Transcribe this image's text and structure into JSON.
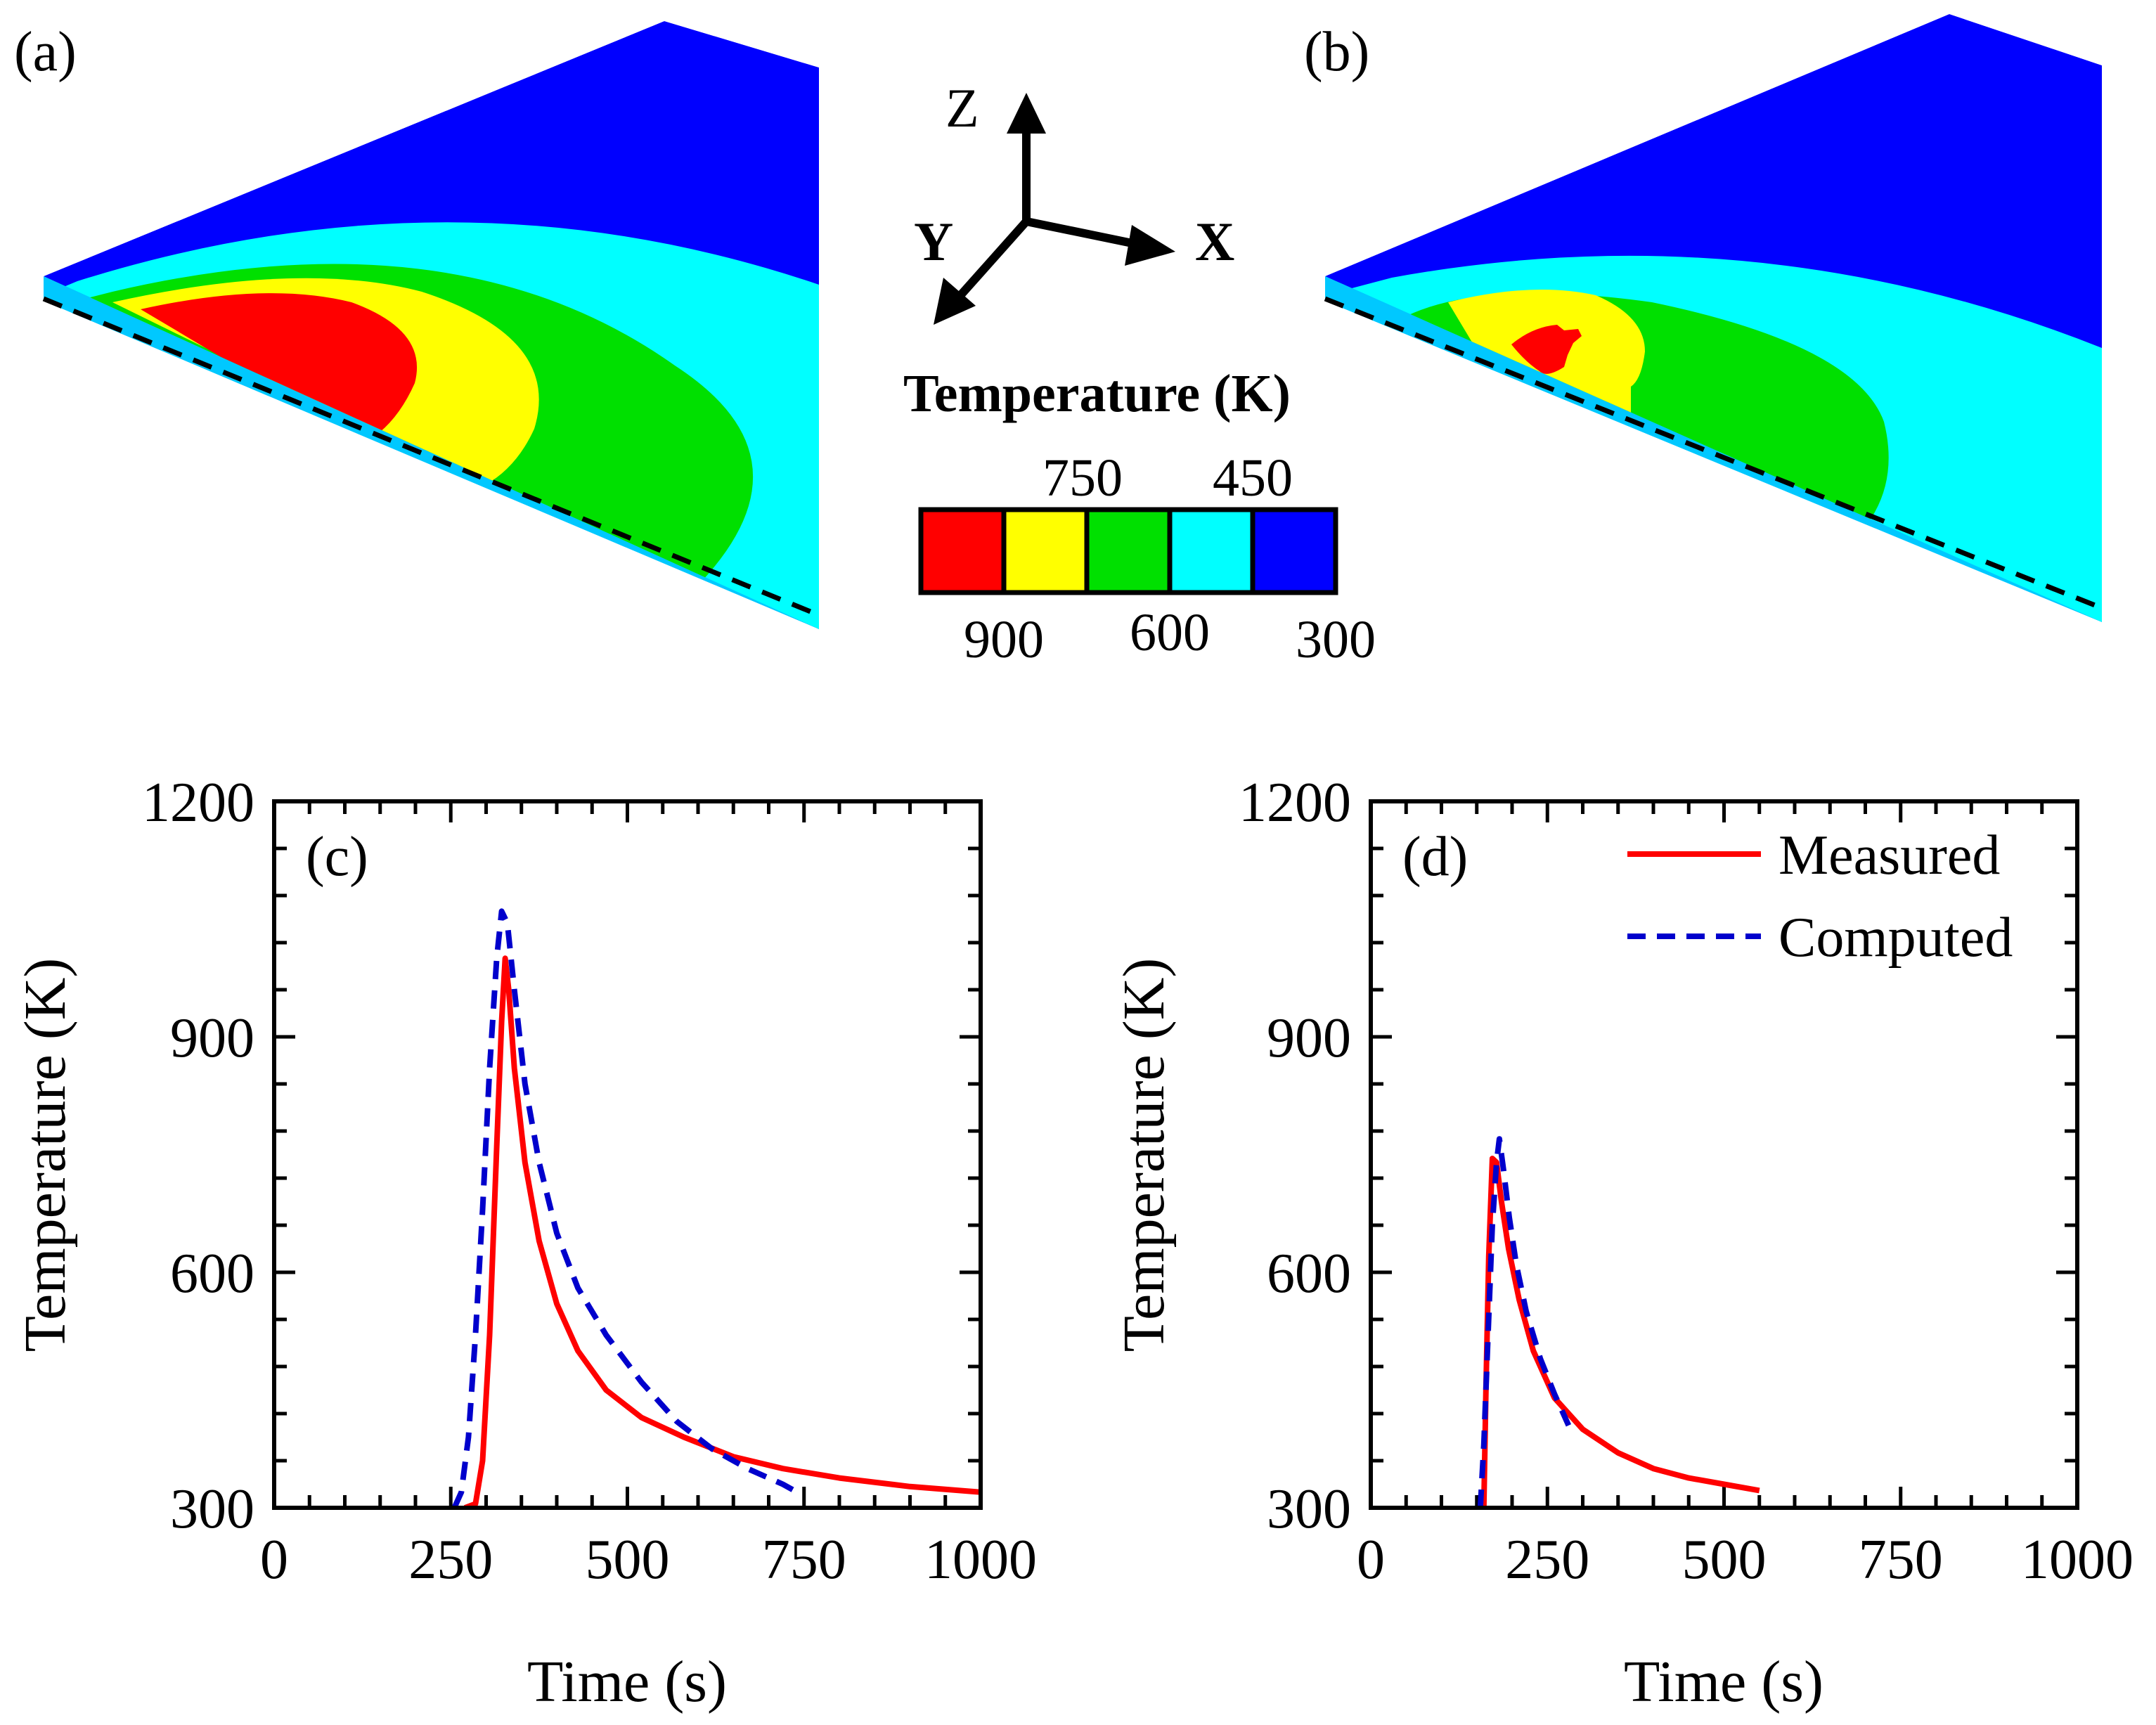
{
  "panel_labels": {
    "a": "(a)",
    "b": "(b)",
    "c": "(c)",
    "d": "(d)"
  },
  "axes_triad": {
    "z": "Z",
    "y": "Y",
    "x": "X"
  },
  "colorbar": {
    "title": "Temperature (K)",
    "top_labels": [
      "750",
      "450"
    ],
    "bottom_labels": [
      "900",
      "600",
      "300"
    ],
    "colors": [
      "#ff0000",
      "#ffff00",
      "#00e000",
      "#00ffff",
      "#0000ff"
    ]
  },
  "chart_data": [
    {
      "type": "line",
      "panel": "(c)",
      "xlabel": "Time (s)",
      "ylabel": "Temperature (K)",
      "xlim": [
        0,
        1000
      ],
      "ylim": [
        300,
        1200
      ],
      "xticks": [
        "0",
        "250",
        "500",
        "750",
        "1000"
      ],
      "yticks": [
        "300",
        "600",
        "900",
        "1200"
      ],
      "series": [
        {
          "name": "Measured",
          "color": "#ff0000",
          "dash": "solid",
          "points": [
            [
              270,
              300
            ],
            [
              285,
              305
            ],
            [
              295,
              360
            ],
            [
              305,
              520
            ],
            [
              315,
              760
            ],
            [
              322,
              920
            ],
            [
              327,
              1000
            ],
            [
              332,
              960
            ],
            [
              340,
              860
            ],
            [
              355,
              740
            ],
            [
              375,
              640
            ],
            [
              400,
              560
            ],
            [
              430,
              500
            ],
            [
              470,
              450
            ],
            [
              520,
              415
            ],
            [
              580,
              390
            ],
            [
              650,
              365
            ],
            [
              720,
              350
            ],
            [
              800,
              338
            ],
            [
              900,
              327
            ],
            [
              1000,
              320
            ]
          ]
        },
        {
          "name": "Computed",
          "color": "#0000cc",
          "dash": "dashed",
          "points": [
            [
              255,
              300
            ],
            [
              265,
              320
            ],
            [
              275,
              390
            ],
            [
              285,
              520
            ],
            [
              295,
              680
            ],
            [
              305,
              860
            ],
            [
              315,
              1000
            ],
            [
              322,
              1060
            ],
            [
              330,
              1045
            ],
            [
              340,
              960
            ],
            [
              355,
              840
            ],
            [
              375,
              740
            ],
            [
              400,
              650
            ],
            [
              430,
              580
            ],
            [
              470,
              520
            ],
            [
              520,
              460
            ],
            [
              570,
              410
            ],
            [
              620,
              375
            ],
            [
              670,
              350
            ],
            [
              720,
              330
            ],
            [
              740,
              320
            ]
          ]
        }
      ]
    },
    {
      "type": "line",
      "panel": "(d)",
      "xlabel": "Time (s)",
      "ylabel": "Temperature (K)",
      "xlim": [
        0,
        1000
      ],
      "ylim": [
        300,
        1200
      ],
      "xticks": [
        "0",
        "250",
        "500",
        "750",
        "1000"
      ],
      "yticks": [
        "300",
        "600",
        "900",
        "1200"
      ],
      "legend": {
        "position": "top-right",
        "entries": [
          "Measured",
          "Computed"
        ]
      },
      "series": [
        {
          "name": "Measured",
          "color": "#ff0000",
          "dash": "solid",
          "points": [
            [
              160,
              300
            ],
            [
              163,
              450
            ],
            [
              167,
              620
            ],
            [
              172,
              745
            ],
            [
              178,
              740
            ],
            [
              185,
              690
            ],
            [
              195,
              630
            ],
            [
              210,
              565
            ],
            [
              230,
              500
            ],
            [
              260,
              440
            ],
            [
              300,
              400
            ],
            [
              350,
              370
            ],
            [
              400,
              350
            ],
            [
              450,
              338
            ],
            [
              500,
              330
            ],
            [
              550,
              322
            ]
          ]
        },
        {
          "name": "Computed",
          "color": "#0000cc",
          "dash": "dashed",
          "points": [
            [
              155,
              300
            ],
            [
              160,
              380
            ],
            [
              166,
              520
            ],
            [
              172,
              660
            ],
            [
              178,
              740
            ],
            [
              182,
              770
            ],
            [
              188,
              730
            ],
            [
              196,
              670
            ],
            [
              206,
              610
            ],
            [
              220,
              550
            ],
            [
              240,
              490
            ],
            [
              260,
              445
            ],
            [
              280,
              405
            ]
          ]
        }
      ]
    }
  ]
}
